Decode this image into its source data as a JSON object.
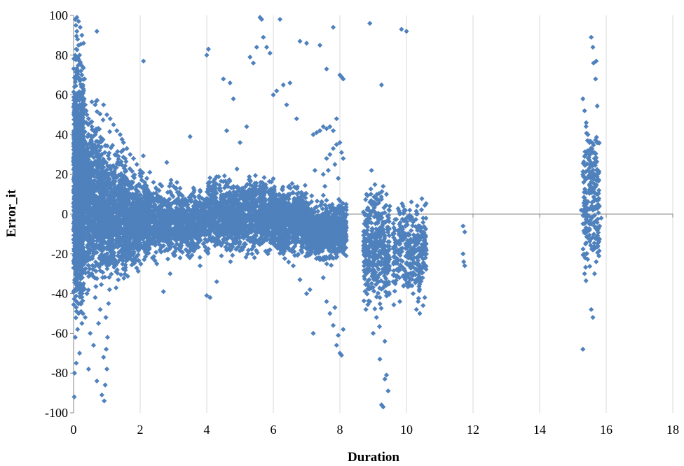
{
  "chart_data": {
    "type": "scatter",
    "title": "",
    "xlabel": "Duration",
    "ylabel": "Error_it",
    "xlim": [
      0,
      18
    ],
    "ylim": [
      -100,
      100
    ],
    "x_ticks": [
      0,
      2,
      4,
      6,
      8,
      10,
      12,
      14,
      16,
      18
    ],
    "y_ticks": [
      -100,
      -80,
      -60,
      -40,
      -20,
      0,
      20,
      40,
      60,
      80,
      100
    ],
    "x_tick_labels": [
      "0",
      "2",
      "4",
      "6",
      "8",
      "10",
      "12",
      "14",
      "16",
      "18"
    ],
    "y_tick_labels": [
      "-100",
      "-80",
      "-60",
      "-40",
      "-20",
      "0",
      "20",
      "40",
      "60",
      "80",
      "100"
    ],
    "grid": "vertical",
    "legend": "none",
    "colors": {
      "marker": "#4F81BD",
      "grid": "#D9D9D9",
      "axis": "#868686"
    },
    "marker": "diamond",
    "series": [
      {
        "values": [
          [
            0.02,
            -92
          ],
          [
            0.03,
            -80
          ],
          [
            0.05,
            -62
          ],
          [
            0.08,
            -75
          ],
          [
            0.12,
            -58
          ],
          [
            0.15,
            -50
          ],
          [
            0.18,
            -70
          ],
          [
            0.2,
            -45
          ],
          [
            0.25,
            -55
          ],
          [
            0.3,
            -35
          ],
          [
            0.35,
            -52
          ],
          [
            0.4,
            -40
          ],
          [
            0.45,
            -78
          ],
          [
            0.5,
            -60
          ],
          [
            0.55,
            -30
          ],
          [
            0.6,
            -66
          ],
          [
            0.65,
            -42
          ],
          [
            0.7,
            -84
          ],
          [
            0.75,
            -55
          ],
          [
            0.8,
            -48
          ],
          [
            0.85,
            -91
          ],
          [
            0.9,
            -72
          ],
          [
            0.92,
            -94
          ],
          [
            0.95,
            -86
          ],
          [
            0.98,
            -68
          ],
          [
            1.0,
            -78
          ],
          [
            1.02,
            -62
          ],
          [
            1.05,
            -45
          ],
          [
            1.08,
            -38
          ],
          [
            0.97,
            -52
          ],
          [
            0.05,
            98
          ],
          [
            0.07,
            95
          ],
          [
            0.1,
            92
          ],
          [
            0.12,
            88
          ],
          [
            0.15,
            85
          ],
          [
            0.18,
            80
          ],
          [
            0.2,
            76
          ],
          [
            0.22,
            72
          ],
          [
            0.25,
            70
          ],
          [
            0.28,
            65
          ],
          [
            0.3,
            62
          ],
          [
            0.32,
            58
          ],
          [
            0.35,
            55
          ],
          [
            0.38,
            52
          ],
          [
            0.4,
            50
          ],
          [
            0.45,
            48
          ],
          [
            0.5,
            46
          ],
          [
            0.55,
            44
          ],
          [
            0.6,
            42
          ],
          [
            0.65,
            40
          ],
          [
            0.7,
            92
          ],
          [
            0.1,
            99
          ],
          [
            0.15,
            97
          ],
          [
            0.2,
            94
          ],
          [
            0.25,
            90
          ],
          [
            0.3,
            86
          ],
          [
            0.08,
            83
          ],
          [
            0.12,
            78
          ],
          [
            0.28,
            74
          ],
          [
            0.33,
            68
          ],
          [
            0.9,
            55
          ],
          [
            1.0,
            50
          ],
          [
            1.1,
            48
          ],
          [
            1.2,
            45
          ],
          [
            1.3,
            42
          ],
          [
            1.4,
            40
          ],
          [
            1.5,
            36
          ],
          [
            1.6,
            33
          ],
          [
            1.7,
            30
          ],
          [
            1.8,
            28
          ],
          [
            1.9,
            25
          ],
          [
            2.0,
            22
          ],
          [
            2.1,
            77
          ],
          [
            2.2,
            18
          ],
          [
            2.4,
            16
          ],
          [
            2.6,
            15
          ],
          [
            2.8,
            26
          ],
          [
            3.0,
            14
          ],
          [
            3.2,
            13
          ],
          [
            3.5,
            39
          ],
          [
            3.8,
            12
          ],
          [
            4.0,
            80
          ],
          [
            4.05,
            83
          ],
          [
            4.2,
            10
          ],
          [
            4.5,
            68
          ],
          [
            4.6,
            42
          ],
          [
            4.7,
            66
          ],
          [
            4.8,
            58
          ],
          [
            5.0,
            36
          ],
          [
            5.2,
            44
          ],
          [
            5.3,
            79
          ],
          [
            5.4,
            76
          ],
          [
            5.5,
            84
          ],
          [
            5.6,
            99
          ],
          [
            5.65,
            98
          ],
          [
            5.7,
            89
          ],
          [
            5.8,
            84
          ],
          [
            5.9,
            81
          ],
          [
            6.0,
            60
          ],
          [
            6.1,
            62
          ],
          [
            6.2,
            98
          ],
          [
            6.3,
            65
          ],
          [
            6.4,
            55
          ],
          [
            6.5,
            66
          ],
          [
            6.7,
            48
          ],
          [
            6.8,
            87
          ],
          [
            7.0,
            86
          ],
          [
            7.2,
            40
          ],
          [
            7.4,
            85
          ],
          [
            7.6,
            73
          ],
          [
            7.8,
            94
          ],
          [
            8.0,
            70
          ],
          [
            8.05,
            69
          ],
          [
            8.1,
            68
          ],
          [
            8.9,
            96
          ],
          [
            9.25,
            65
          ],
          [
            9.85,
            93
          ],
          [
            10.0,
            92
          ],
          [
            2.0,
            -12
          ],
          [
            2.2,
            -20
          ],
          [
            2.5,
            -25
          ],
          [
            2.7,
            -39
          ],
          [
            2.9,
            -30
          ],
          [
            3.2,
            -22
          ],
          [
            3.6,
            -18
          ],
          [
            3.8,
            -26
          ],
          [
            4.0,
            -41
          ],
          [
            4.1,
            -42
          ],
          [
            4.3,
            -34
          ],
          [
            4.6,
            -18
          ],
          [
            5.0,
            -14
          ],
          [
            5.4,
            -16
          ],
          [
            5.9,
            -18
          ],
          [
            6.3,
            -20
          ],
          [
            6.6,
            -26
          ],
          [
            6.8,
            -33
          ],
          [
            7.0,
            -40
          ],
          [
            7.1,
            -38
          ],
          [
            7.2,
            -60
          ],
          [
            7.4,
            -22
          ],
          [
            7.5,
            -32
          ],
          [
            7.6,
            -44
          ],
          [
            7.7,
            -50
          ],
          [
            7.8,
            -56
          ],
          [
            7.9,
            -66
          ],
          [
            8.0,
            -70
          ],
          [
            8.05,
            -71
          ],
          [
            7.95,
            -61
          ],
          [
            8.1,
            -58
          ],
          [
            7.85,
            -47
          ],
          [
            8.8,
            -30
          ],
          [
            8.9,
            -44
          ],
          [
            9.0,
            -60
          ],
          [
            9.1,
            -52
          ],
          [
            9.2,
            -73
          ],
          [
            9.25,
            -96
          ],
          [
            9.3,
            -97
          ],
          [
            9.35,
            -83
          ],
          [
            9.4,
            -81
          ],
          [
            9.45,
            -89
          ],
          [
            9.2,
            -42
          ],
          [
            9.0,
            -24
          ],
          [
            8.85,
            -36
          ],
          [
            9.35,
            -64
          ],
          [
            9.6,
            -34
          ],
          [
            9.8,
            -44
          ],
          [
            10.0,
            -30
          ],
          [
            10.2,
            -40
          ],
          [
            10.3,
            -48
          ],
          [
            10.4,
            -50
          ],
          [
            10.5,
            -46
          ],
          [
            10.55,
            -42
          ],
          [
            10.1,
            -36
          ],
          [
            10.35,
            -44
          ],
          [
            11.7,
            -6
          ],
          [
            11.75,
            -9
          ],
          [
            11.7,
            -20
          ],
          [
            11.75,
            -26
          ],
          [
            11.72,
            -24
          ],
          [
            15.3,
            -68
          ],
          [
            15.35,
            -30
          ],
          [
            15.4,
            -20
          ],
          [
            15.45,
            -12
          ],
          [
            15.5,
            -8
          ],
          [
            15.55,
            -48
          ],
          [
            15.6,
            -52
          ],
          [
            15.65,
            -30
          ],
          [
            15.7,
            -24
          ],
          [
            15.75,
            -16
          ],
          [
            15.8,
            -6
          ],
          [
            15.3,
            58
          ],
          [
            15.35,
            52
          ],
          [
            15.4,
            46
          ],
          [
            15.45,
            40
          ],
          [
            15.5,
            36
          ],
          [
            15.55,
            89
          ],
          [
            15.6,
            84
          ],
          [
            15.62,
            76
          ],
          [
            15.7,
            77
          ],
          [
            15.68,
            68
          ],
          [
            15.25,
            2
          ],
          [
            15.4,
            0
          ],
          [
            15.55,
            -2
          ],
          [
            15.6,
            2
          ],
          [
            15.72,
            4
          ],
          [
            15.85,
            -2
          ],
          [
            15.5,
            15
          ],
          [
            15.6,
            22
          ],
          [
            15.65,
            28
          ],
          [
            15.75,
            10
          ],
          [
            8.8,
            10
          ],
          [
            8.9,
            6
          ],
          [
            9.0,
            2
          ],
          [
            9.1,
            8
          ],
          [
            9.2,
            0
          ],
          [
            9.3,
            14
          ],
          [
            9.4,
            10
          ],
          [
            9.5,
            4
          ],
          [
            8.95,
            22
          ],
          [
            9.15,
            -8
          ],
          [
            9.8,
            0
          ],
          [
            9.9,
            4
          ],
          [
            10.0,
            -2
          ],
          [
            10.1,
            2
          ],
          [
            10.2,
            -4
          ],
          [
            10.3,
            0
          ],
          [
            10.4,
            -6
          ],
          [
            10.5,
            -2
          ],
          [
            9.95,
            -12
          ],
          [
            10.25,
            -14
          ],
          [
            7.5,
            20
          ],
          [
            7.6,
            28
          ],
          [
            7.7,
            30
          ],
          [
            7.8,
            33
          ],
          [
            7.9,
            35
          ],
          [
            8.0,
            36
          ],
          [
            8.1,
            28
          ],
          [
            7.65,
            22
          ],
          [
            7.85,
            25
          ],
          [
            8.05,
            31
          ],
          [
            7.4,
            42
          ],
          [
            7.5,
            44
          ],
          [
            7.6,
            43
          ],
          [
            7.7,
            44
          ],
          [
            7.8,
            42
          ],
          [
            7.9,
            48
          ],
          [
            7.3,
            41
          ],
          [
            7.25,
            22
          ],
          [
            7.55,
            14
          ],
          [
            7.95,
            18
          ]
        ]
      }
    ],
    "dense_regions": [
      {
        "x": [
          0.0,
          0.3
        ],
        "y": [
          -40,
          70
        ],
        "density": 1400
      },
      {
        "x": [
          0.2,
          0.9
        ],
        "y": [
          -30,
          45
        ],
        "density": 900
      },
      {
        "x": [
          0.8,
          1.6
        ],
        "y": [
          -30,
          30
        ],
        "density": 800
      },
      {
        "x": [
          1.5,
          2.3
        ],
        "y": [
          -25,
          20
        ],
        "density": 600
      },
      {
        "x": [
          2.2,
          4.0
        ],
        "y": [
          -20,
          12
        ],
        "density": 1000
      },
      {
        "x": [
          4.0,
          6.0
        ],
        "y": [
          -18,
          18
        ],
        "density": 1200
      },
      {
        "x": [
          6.0,
          7.0
        ],
        "y": [
          -20,
          14
        ],
        "density": 700
      },
      {
        "x": [
          7.0,
          8.2
        ],
        "y": [
          -22,
          6
        ],
        "density": 800
      },
      {
        "x": [
          8.7,
          9.5
        ],
        "y": [
          -45,
          12
        ],
        "density": 380
      },
      {
        "x": [
          9.6,
          10.6
        ],
        "y": [
          -40,
          4
        ],
        "density": 320
      },
      {
        "x": [
          15.3,
          15.8
        ],
        "y": [
          -25,
          45
        ],
        "density": 220
      }
    ]
  }
}
